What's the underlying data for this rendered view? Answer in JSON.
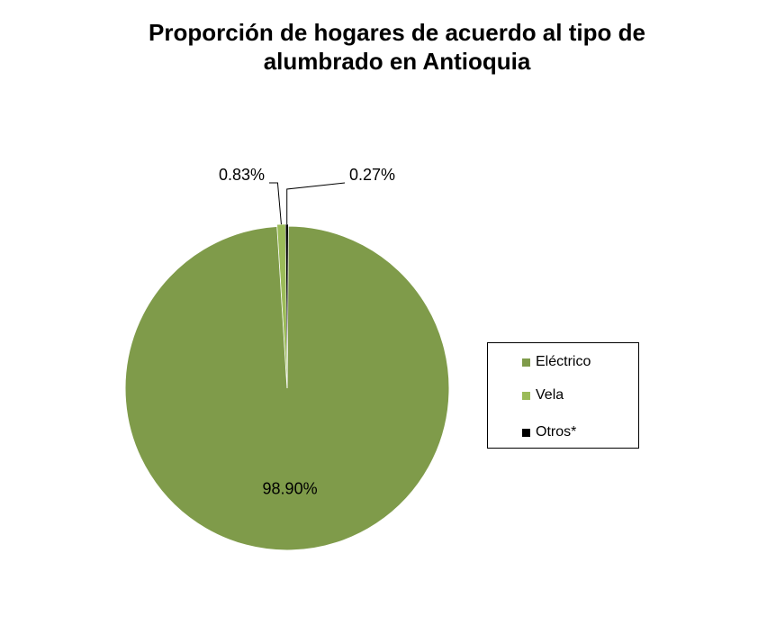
{
  "chart_data": {
    "type": "pie",
    "title": "Proporción de hogares de acuerdo al tipo de alumbrado en Antioquia",
    "title_lines": [
      "Proporción de hogares de acuerdo al tipo de",
      "alumbrado en Antioquia"
    ],
    "categories": [
      "Eléctrico",
      "Vela",
      "Otros*"
    ],
    "values": [
      98.9,
      0.83,
      0.27
    ],
    "data_labels": [
      "98.90%",
      "0.83%",
      "0.27%"
    ],
    "colors": [
      "#7f9b4a",
      "#9bbb59",
      "#000000"
    ],
    "legend_position": "right",
    "grid": false
  }
}
